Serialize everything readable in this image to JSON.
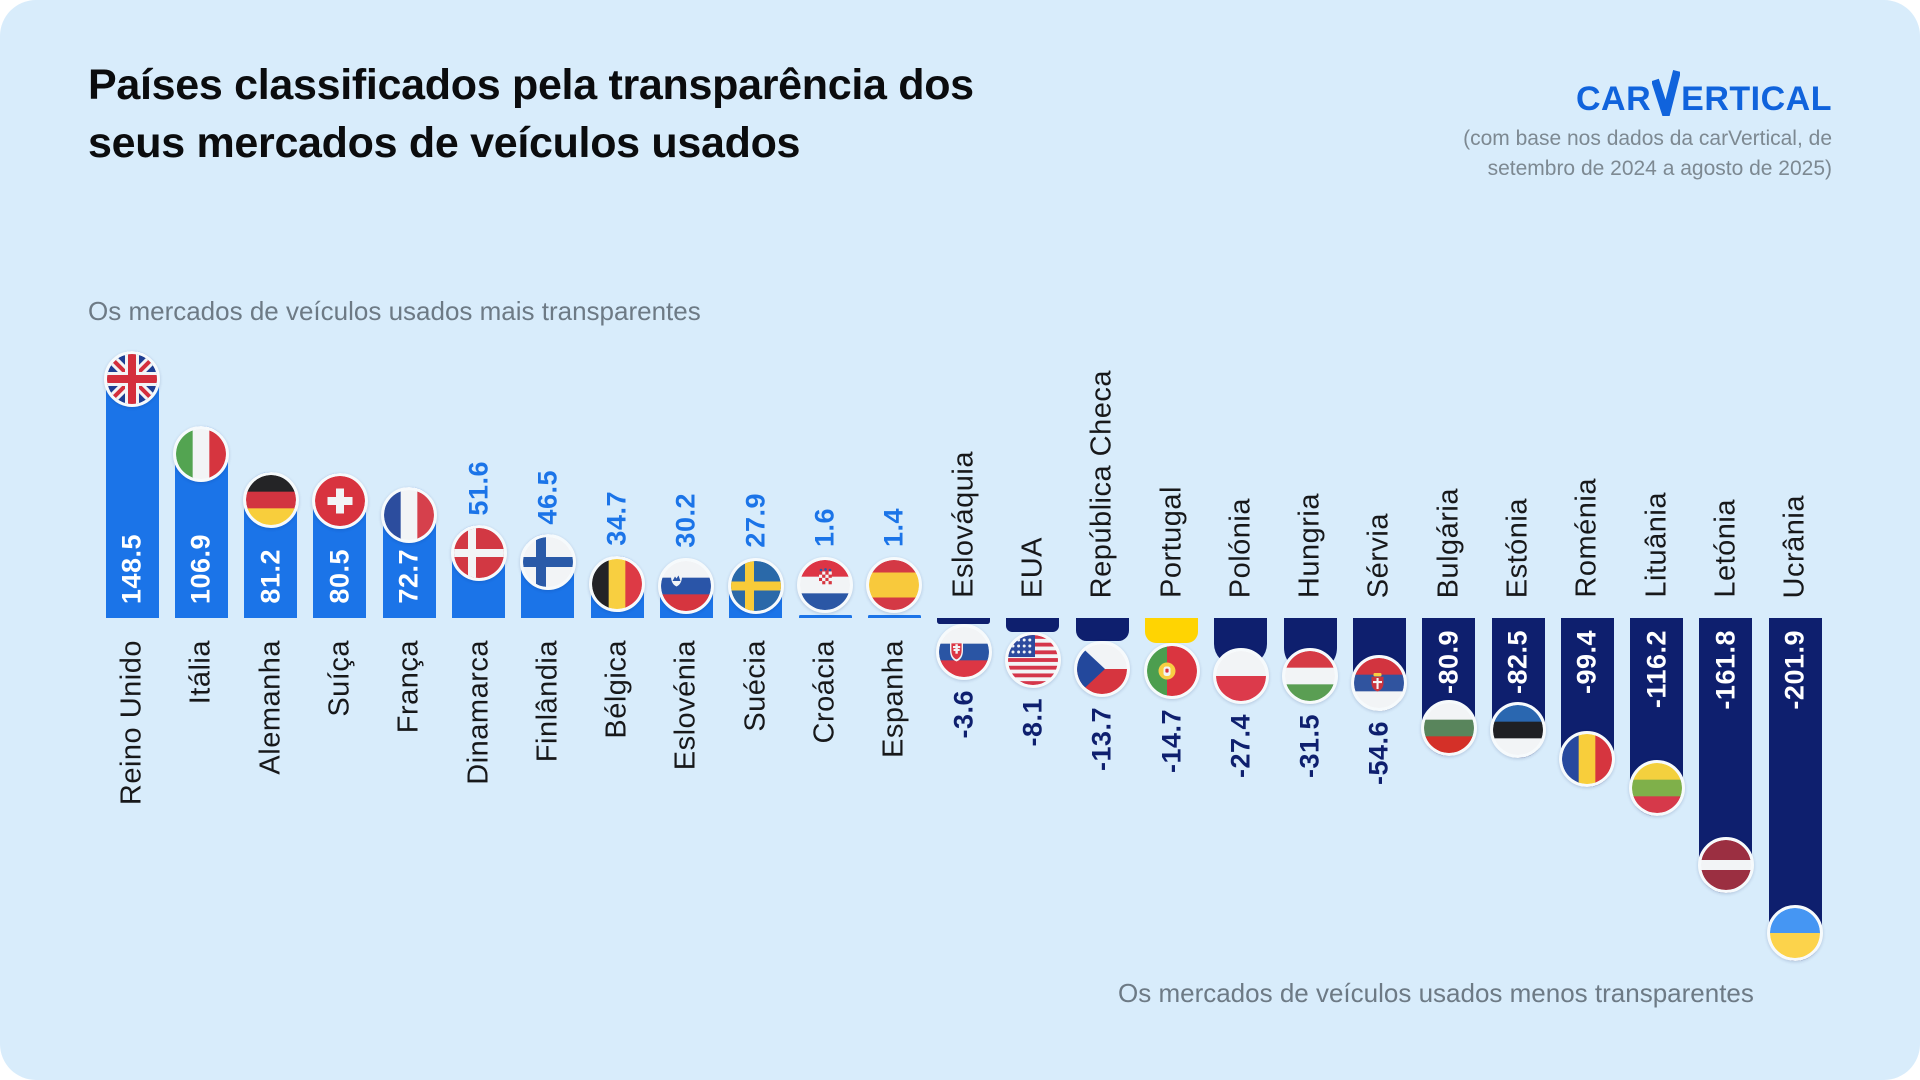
{
  "page": {
    "background": "#ffffff",
    "canvas_color": "#d8ecfb"
  },
  "header": {
    "title_line1": "Países classificados pela transparência dos",
    "title_line2": "seus mercados de veículos usados",
    "logo": {
      "prefix": "CAR",
      "suffix": "ERTICAL",
      "full": "carVertical"
    },
    "source_note_line1": "(com base nos dados da carVertical, de",
    "source_note_line2": "setembro de 2024 a agosto de 2025)"
  },
  "annotations": {
    "most_transparent": "Os mercados de veículos usados mais transparentes",
    "least_transparent": "Os mercados de veículos usados menos transparentes"
  },
  "colors": {
    "positive_bar": "#1b74e8",
    "negative_bar": "#0e1f6e",
    "highlight_bar": "#ffd402",
    "positive_value_text": "#1b74e8",
    "negative_value_text": "#0e1f6e",
    "inside_value_text": "#ffffff",
    "label_text": "#17181a",
    "muted_text": "#6d7a85",
    "logo_blue": "#1063dc"
  },
  "chart_data": {
    "type": "bar",
    "orientation": "vertical-diverging",
    "title": "Países classificados pela transparência dos seus mercados de veículos usados",
    "value_description": "índice de transparência (positivo = mais transparente, negativo = menos transparente)",
    "baseline": 0,
    "ylim": [
      -210,
      155
    ],
    "categories": [
      "Reino Unido",
      "Itália",
      "Alemanha",
      "Suíça",
      "França",
      "Dinamarca",
      "Finlândia",
      "Bélgica",
      "Eslovénia",
      "Suécia",
      "Croácia",
      "Espanha",
      "Eslováquia",
      "EUA",
      "República Checa",
      "Portugal",
      "Polónia",
      "Hungria",
      "Sérvia",
      "Bulgária",
      "Estónia",
      "Roménia",
      "Lituânia",
      "Letónia",
      "Ucrânia"
    ],
    "values": [
      148.5,
      106.9,
      81.2,
      80.5,
      72.7,
      51.6,
      46.5,
      34.7,
      30.2,
      27.9,
      1.6,
      1.4,
      -3.6,
      -8.1,
      -13.7,
      -14.7,
      -27.4,
      -31.5,
      -54.6,
      -80.9,
      -82.5,
      -99.4,
      -116.2,
      -161.8,
      -201.9
    ],
    "countries": [
      {
        "name": "Reino Unido",
        "value": 148.5,
        "label": "148.5",
        "flag": "gb"
      },
      {
        "name": "Itália",
        "value": 106.9,
        "label": "106.9",
        "flag": "it"
      },
      {
        "name": "Alemanha",
        "value": 81.2,
        "label": "81.2",
        "flag": "de"
      },
      {
        "name": "Suíça",
        "value": 80.5,
        "label": "80.5",
        "flag": "ch"
      },
      {
        "name": "França",
        "value": 72.7,
        "label": "72.7",
        "flag": "fr"
      },
      {
        "name": "Dinamarca",
        "value": 51.6,
        "label": "51.6",
        "flag": "dk"
      },
      {
        "name": "Finlândia",
        "value": 46.5,
        "label": "46.5",
        "flag": "fi"
      },
      {
        "name": "Bélgica",
        "value": 34.7,
        "label": "34.7",
        "flag": "be"
      },
      {
        "name": "Eslovénia",
        "value": 30.2,
        "label": "30.2",
        "flag": "si"
      },
      {
        "name": "Suécia",
        "value": 27.9,
        "label": "27.9",
        "flag": "se"
      },
      {
        "name": "Croácia",
        "value": 1.6,
        "label": "1.6",
        "flag": "hr"
      },
      {
        "name": "Espanha",
        "value": 1.4,
        "label": "1.4",
        "flag": "es"
      },
      {
        "name": "Eslováquia",
        "value": -3.6,
        "label": "-3.6",
        "flag": "sk"
      },
      {
        "name": "EUA",
        "value": -8.1,
        "label": "-8.1",
        "flag": "us"
      },
      {
        "name": "República Checa",
        "value": -13.7,
        "label": "-13.7",
        "flag": "cz"
      },
      {
        "name": "Portugal",
        "value": -14.7,
        "label": "-14.7",
        "flag": "pt",
        "highlight": true
      },
      {
        "name": "Polónia",
        "value": -27.4,
        "label": "-27.4",
        "flag": "pl"
      },
      {
        "name": "Hungria",
        "value": -31.5,
        "label": "-31.5",
        "flag": "hu"
      },
      {
        "name": "Sérvia",
        "value": -54.6,
        "label": "-54.6",
        "flag": "rs"
      },
      {
        "name": "Bulgária",
        "value": -80.9,
        "label": "-80.9",
        "flag": "bg"
      },
      {
        "name": "Estónia",
        "value": -82.5,
        "label": "-82.5",
        "flag": "ee"
      },
      {
        "name": "Roménia",
        "value": -99.4,
        "label": "-99.4",
        "flag": "ro"
      },
      {
        "name": "Lituânia",
        "value": -116.2,
        "label": "-116.2",
        "flag": "lt"
      },
      {
        "name": "Letónia",
        "value": -161.8,
        "label": "-161.8",
        "flag": "lv"
      },
      {
        "name": "Ucrânia",
        "value": -201.9,
        "label": "-201.9",
        "flag": "ua"
      }
    ]
  }
}
